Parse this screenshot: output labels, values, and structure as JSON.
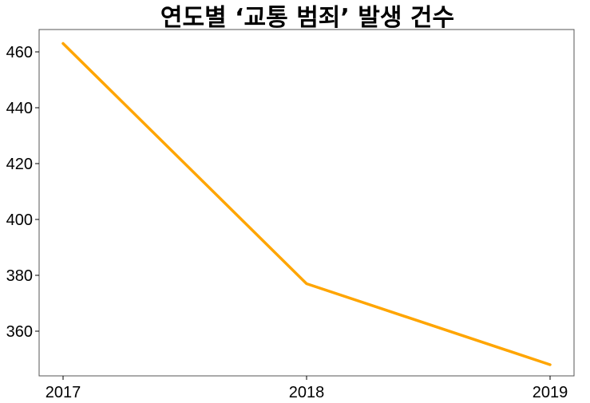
{
  "chart_data": {
    "type": "line",
    "title": "연도별 ‘교통 범죄’ 발생 건수",
    "xlabel": "",
    "ylabel": "",
    "categories": [
      "2017",
      "2018",
      "2019"
    ],
    "series": [
      {
        "values": [
          463,
          377,
          348
        ],
        "color": "#FFA500"
      }
    ],
    "ylim": [
      344,
      468
    ],
    "yticks": [
      360,
      380,
      400,
      420,
      440,
      460
    ],
    "ytick_labels": [
      "360",
      "380",
      "400",
      "420",
      "440",
      "460"
    ],
    "grid": false,
    "legend": "none"
  }
}
